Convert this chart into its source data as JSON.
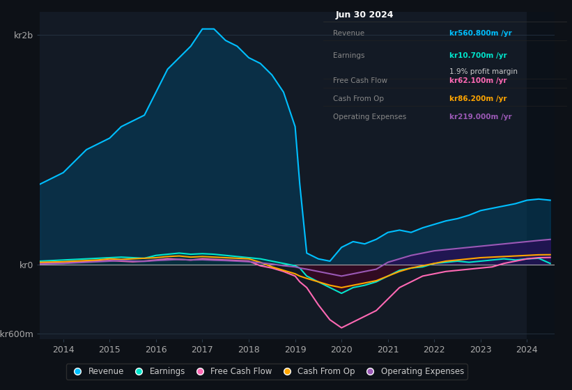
{
  "background_color": "#0d1117",
  "plot_bg_color": "#131a25",
  "grid_color": "#2a3a4a",
  "title_date": "Jun 30 2024",
  "ytick_labels": [
    "kr2b",
    "kr0",
    "-kr600m"
  ],
  "ytick_values": [
    2000,
    0,
    -600
  ],
  "xtick_labels": [
    "2014",
    "2015",
    "2016",
    "2017",
    "2018",
    "2019",
    "2020",
    "2021",
    "2022",
    "2023",
    "2024"
  ],
  "legend": [
    {
      "label": "Revenue",
      "color": "#00bfff"
    },
    {
      "label": "Earnings",
      "color": "#00e5cc"
    },
    {
      "label": "Free Cash Flow",
      "color": "#ff69b4"
    },
    {
      "label": "Cash From Op",
      "color": "#ffa500"
    },
    {
      "label": "Operating Expenses",
      "color": "#9b59b6"
    }
  ],
  "info_rows": [
    {
      "label": "Revenue",
      "value": "kr560.800m /yr",
      "color": "#00bfff",
      "extra": null
    },
    {
      "label": "Earnings",
      "value": "kr10.700m /yr",
      "color": "#00e5cc",
      "extra": "1.9% profit margin"
    },
    {
      "label": "Free Cash Flow",
      "value": "kr62.100m /yr",
      "color": "#ff69b4",
      "extra": null
    },
    {
      "label": "Cash From Op",
      "value": "kr86.200m /yr",
      "color": "#ffa500",
      "extra": null
    },
    {
      "label": "Operating Expenses",
      "value": "kr219.000m /yr",
      "color": "#9b59b6",
      "extra": null
    }
  ],
  "series": {
    "years": [
      2013.5,
      2014.0,
      2014.25,
      2014.5,
      2014.75,
      2015.0,
      2015.25,
      2015.5,
      2015.75,
      2016.0,
      2016.25,
      2016.5,
      2016.75,
      2017.0,
      2017.25,
      2017.5,
      2017.75,
      2018.0,
      2018.25,
      2018.5,
      2018.75,
      2019.0,
      2019.1,
      2019.25,
      2019.5,
      2019.75,
      2020.0,
      2020.25,
      2020.5,
      2020.75,
      2021.0,
      2021.25,
      2021.5,
      2021.75,
      2022.0,
      2022.25,
      2022.5,
      2022.75,
      2023.0,
      2023.25,
      2023.5,
      2023.75,
      2024.0,
      2024.25,
      2024.5
    ],
    "revenue": [
      700,
      800,
      900,
      1000,
      1050,
      1100,
      1200,
      1250,
      1300,
      1500,
      1700,
      1800,
      1900,
      2050,
      2050,
      1950,
      1900,
      1800,
      1750,
      1650,
      1500,
      1200,
      700,
      100,
      50,
      30,
      150,
      200,
      180,
      220,
      280,
      300,
      280,
      320,
      350,
      380,
      400,
      430,
      470,
      490,
      510,
      530,
      560,
      570,
      560
    ],
    "earnings": [
      30,
      40,
      45,
      50,
      55,
      60,
      65,
      60,
      55,
      80,
      90,
      100,
      90,
      95,
      90,
      80,
      70,
      60,
      50,
      30,
      10,
      -10,
      -30,
      -100,
      -150,
      -200,
      -250,
      -200,
      -180,
      -150,
      -100,
      -50,
      -30,
      -20,
      10,
      20,
      30,
      20,
      30,
      40,
      50,
      40,
      50,
      55,
      10
    ],
    "free_cash_flow": [
      10,
      15,
      20,
      25,
      30,
      35,
      30,
      25,
      30,
      40,
      50,
      45,
      40,
      50,
      45,
      40,
      35,
      30,
      -10,
      -30,
      -60,
      -100,
      -150,
      -200,
      -350,
      -480,
      -550,
      -500,
      -450,
      -400,
      -300,
      -200,
      -150,
      -100,
      -80,
      -60,
      -50,
      -40,
      -30,
      -20,
      10,
      30,
      50,
      60,
      62
    ],
    "cash_from_op": [
      20,
      25,
      30,
      35,
      40,
      50,
      45,
      50,
      55,
      60,
      70,
      75,
      65,
      70,
      65,
      60,
      55,
      50,
      20,
      -20,
      -50,
      -80,
      -100,
      -120,
      -150,
      -180,
      -200,
      -180,
      -160,
      -140,
      -100,
      -60,
      -30,
      -10,
      10,
      30,
      40,
      50,
      60,
      65,
      70,
      75,
      80,
      85,
      86
    ],
    "operating_expenses": [
      5,
      10,
      15,
      20,
      25,
      30,
      35,
      30,
      28,
      35,
      40,
      45,
      40,
      42,
      38,
      35,
      30,
      25,
      15,
      5,
      -10,
      -20,
      -30,
      -40,
      -60,
      -80,
      -100,
      -80,
      -60,
      -40,
      20,
      50,
      80,
      100,
      120,
      130,
      140,
      150,
      160,
      170,
      180,
      190,
      200,
      210,
      219
    ]
  }
}
